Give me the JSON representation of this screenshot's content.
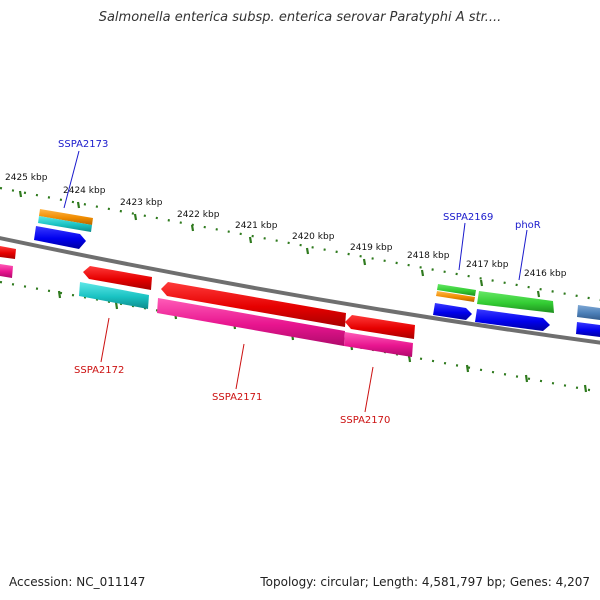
{
  "title": "Salmonella enterica subsp. enterica serovar Paratyphi A str....",
  "footer": {
    "accession": "Accession: NC_011147",
    "summary": "Topology: circular; Length: 4,581,797 bp; Genes: 4,207"
  },
  "colors": {
    "backbone": "#7a7a7a",
    "tick": "#2f7a1e",
    "label_forward": "#1a1acc",
    "label_reverse": "#cc1111"
  },
  "scale": {
    "ticks": [
      "2425 kbp",
      "2424 kbp",
      "2423 kbp",
      "2422 kbp",
      "2421 kbp",
      "2420 kbp",
      "2419 kbp",
      "2418 kbp",
      "2417 kbp",
      "2416 kbp"
    ]
  },
  "genes": {
    "forward_labels": [
      "SSPA2173",
      "SSPA2169",
      "phoR"
    ],
    "reverse_labels": [
      "SSPA2172",
      "SSPA2171",
      "SSPA2170"
    ]
  }
}
